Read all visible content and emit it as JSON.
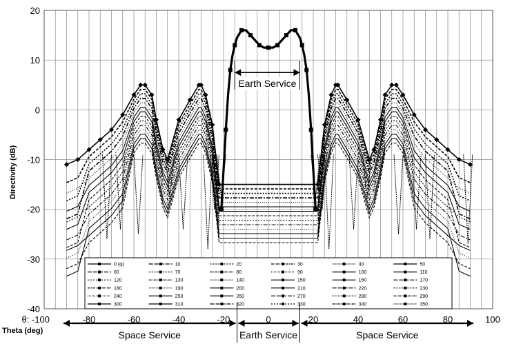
{
  "chart_data": {
    "type": "line",
    "title": "",
    "xlabel": "Theta (deg)",
    "ylabel": "Directivity (dB)",
    "xlim": [
      -100,
      100
    ],
    "ylim": [
      -40,
      20
    ],
    "x_ticks": [
      -100,
      -80,
      -60,
      -40,
      -20,
      0,
      20,
      40,
      60,
      80,
      100
    ],
    "x_tick_labels": [
      "θ: -100",
      "-80",
      "-60",
      "-40",
      "-20",
      "0",
      "20",
      "40",
      "60",
      "80",
      "100"
    ],
    "y_ticks": [
      -40,
      -30,
      -20,
      -10,
      0,
      10,
      20
    ],
    "grid": true,
    "legend": {
      "placement": "bottom-center",
      "entries": [
        "0 (φ)",
        "10",
        "20",
        "30",
        "40",
        "50",
        "60",
        "70",
        "80",
        "90",
        "100",
        "110",
        "120",
        "130",
        "140",
        "150",
        "160",
        "170",
        "180",
        "190",
        "200",
        "210",
        "220",
        "230",
        "240",
        "250",
        "260",
        "270",
        "280",
        "290",
        "300",
        "310",
        "320",
        "330",
        "340",
        "350"
      ]
    },
    "main_beam": {
      "x": [
        -21,
        -20,
        -19,
        -18,
        -17,
        -16,
        -15,
        -14,
        -12,
        -10,
        -8,
        -6,
        -4,
        -2,
        0,
        2,
        4,
        6,
        8,
        10,
        12,
        14,
        15,
        16,
        17,
        18,
        19,
        20,
        21
      ],
      "y": [
        -20,
        -12,
        -4,
        3,
        8,
        11,
        13,
        14.5,
        16,
        16,
        15,
        14,
        13,
        12.5,
        12.5,
        12.5,
        13,
        14,
        15,
        16,
        16,
        14.5,
        13,
        11,
        8,
        3,
        -4,
        -12,
        -20
      ]
    },
    "sidelobe_envelope_peak": {
      "x": [
        -90,
        -85,
        -80,
        -75,
        -70,
        -65,
        -60,
        -57,
        -55,
        -52,
        -50,
        -47,
        -45,
        -40,
        -35,
        -31,
        -30,
        -28,
        -25,
        -22,
        22,
        25,
        28,
        30,
        31,
        35,
        40,
        45,
        47,
        50,
        52,
        55,
        57,
        60,
        65,
        70,
        75,
        80,
        85,
        90
      ],
      "y": [
        -11,
        -10,
        -8,
        -6,
        -4,
        -1,
        3,
        5,
        5,
        3,
        -2,
        -8,
        -10,
        -2,
        2,
        5,
        5,
        3,
        -3,
        -15,
        -15,
        -3,
        3,
        5,
        5,
        2,
        -2,
        -10,
        -8,
        -2,
        3,
        5,
        5,
        3,
        -1,
        -4,
        -6,
        -8,
        -10,
        -11
      ]
    },
    "annotations": [
      {
        "text": "Earth Service",
        "x_range": [
          -15,
          14
        ],
        "y": 7.5
      },
      {
        "text": "Space Service",
        "x_range": [
          -92,
          -14
        ],
        "position": "below-axis"
      },
      {
        "text": "Earth Service",
        "x_range": [
          -14,
          14
        ],
        "position": "below-axis"
      },
      {
        "text": "Space Service",
        "x_range": [
          14,
          92
        ],
        "position": "below-axis"
      }
    ]
  }
}
